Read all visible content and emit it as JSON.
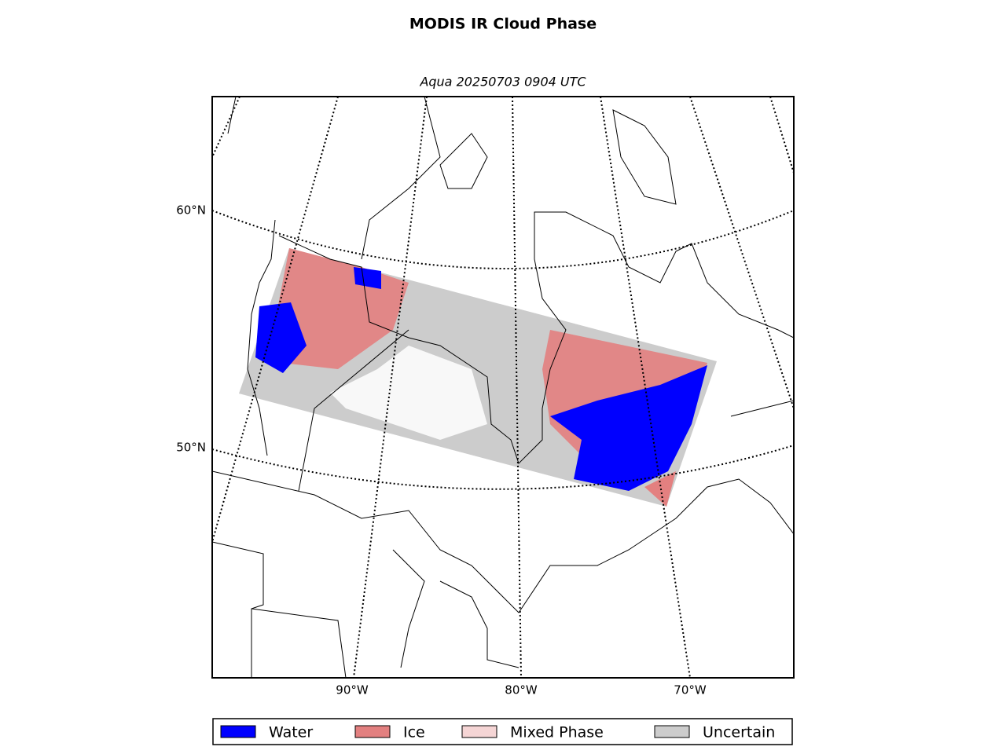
{
  "title": "MODIS IR Cloud Phase",
  "subtitle": "Aqua 20250703 0904 UTC",
  "lat_labels": [
    "60°N",
    "50°N"
  ],
  "lon_labels": [
    "90°W",
    "80°W",
    "70°W"
  ],
  "legend": [
    {
      "label": "Water",
      "color": "#0000ff"
    },
    {
      "label": "Ice",
      "color": "#e38080"
    },
    {
      "label": "Mixed Phase",
      "color": "#f5d5d5"
    },
    {
      "label": "Uncertain",
      "color": "#cccccc"
    }
  ]
}
